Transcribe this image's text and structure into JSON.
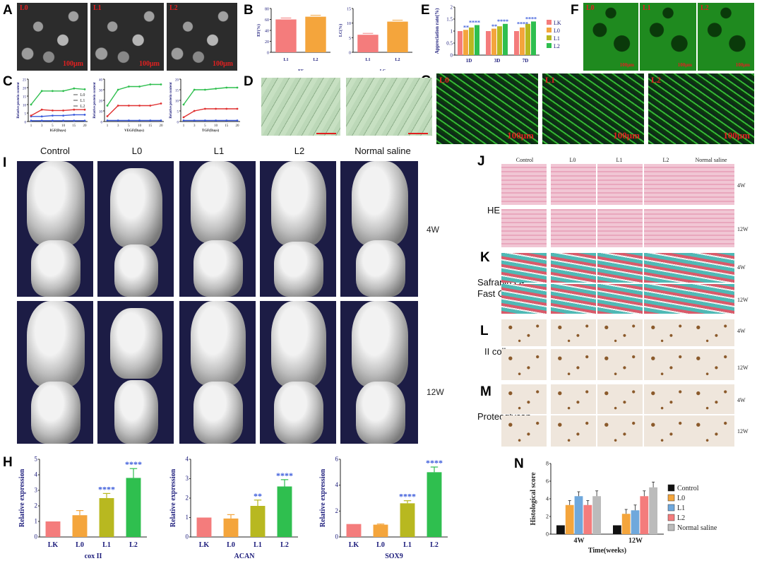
{
  "panels": {
    "A": {
      "label": "A",
      "tags": [
        "L0",
        "L1",
        "L2"
      ],
      "scale": [
        "100μm",
        "100μm",
        "100μm"
      ]
    },
    "B": {
      "label": "B"
    },
    "C": {
      "label": "C"
    },
    "D": {
      "label": "D"
    },
    "E": {
      "label": "E"
    },
    "F": {
      "label": "F",
      "tags": [
        "L0",
        "L1",
        "L2"
      ],
      "scale": [
        "100μm",
        "100μm",
        "100μm"
      ]
    },
    "G": {
      "label": "G",
      "tags": [
        "L0",
        "L1",
        "L2"
      ],
      "scale": [
        "100μm",
        "100μm",
        "100μm"
      ]
    },
    "I": {
      "label": "I",
      "columns": [
        "Control",
        "L0",
        "L1",
        "L2",
        "Normal saline"
      ],
      "rows": [
        "4W",
        "12W"
      ]
    },
    "J": {
      "label": "J",
      "columns": [
        "Control",
        "L0",
        "L1",
        "L2",
        "Normal saline"
      ],
      "rows": [
        "4W",
        "12W"
      ],
      "stain": "HE"
    },
    "K": {
      "label": "K",
      "rows": [
        "4W",
        "12W"
      ],
      "stain_line1": "Safranin O-",
      "stain_line2": "Fast Green"
    },
    "L": {
      "label": "L",
      "rows": [
        "4W",
        "12W"
      ],
      "stain": "II collagen"
    },
    "M": {
      "label": "M",
      "rows": [
        "4W",
        "12W"
      ],
      "stain": "Proteoglycan"
    },
    "H": {
      "label": "H"
    },
    "N": {
      "label": "N"
    }
  },
  "chart_data": [
    {
      "id": "B1",
      "type": "bar",
      "categories": [
        "L1",
        "L2"
      ],
      "values": [
        60,
        65
      ],
      "ylabel": "EF(%)",
      "xlabel": "EF",
      "ylim": [
        0,
        80
      ],
      "yticks": [
        0,
        20,
        40,
        60,
        80
      ],
      "colors": [
        "#f47c7c",
        "#f4a53c"
      ]
    },
    {
      "id": "B2",
      "type": "bar",
      "categories": [
        "L1",
        "L2"
      ],
      "values": [
        6,
        10.5
      ],
      "ylabel": "LC(%)",
      "xlabel": "LC",
      "ylim": [
        0,
        15
      ],
      "yticks": [
        0,
        5,
        10,
        15
      ],
      "colors": [
        "#f47c7c",
        "#f4a53c"
      ]
    },
    {
      "id": "C1",
      "type": "line",
      "x": [
        1,
        3,
        5,
        10,
        15,
        20
      ],
      "xlabel": "IGF(Days)",
      "ylabel": "Relative protein content",
      "ylim": [
        0,
        25
      ],
      "yticks": [
        0,
        5,
        10,
        15,
        20,
        25
      ],
      "series": [
        {
          "name": "L0",
          "values": [
            0.5,
            0.5,
            0.5,
            0.5,
            0.5,
            0.5
          ],
          "color": "#3b5bdb"
        },
        {
          "name": "L1",
          "values": [
            3,
            3,
            3.5,
            3.5,
            4,
            4
          ],
          "color": "#3b5bdb"
        },
        {
          "name": "L2",
          "values": [
            3.5,
            7,
            6.5,
            6.5,
            7,
            7
          ],
          "color": "#e03131"
        },
        {
          "name": "",
          "values": [
            10,
            18,
            18,
            18,
            19.5,
            19
          ],
          "color": "#2fbf4f"
        }
      ]
    },
    {
      "id": "C2",
      "type": "line",
      "x": [
        1,
        3,
        5,
        10,
        15,
        20
      ],
      "xlabel": "VEGF(Days)",
      "ylabel": "Relative protein content",
      "ylim": [
        0,
        40
      ],
      "yticks": [
        0,
        10,
        20,
        30,
        40
      ],
      "series": [
        {
          "name": "",
          "values": [
            1,
            1,
            1,
            1,
            1,
            1
          ],
          "color": "#3b5bdb"
        },
        {
          "name": "",
          "values": [
            5,
            15,
            15,
            15,
            15,
            17
          ],
          "color": "#e03131"
        },
        {
          "name": "",
          "values": [
            15,
            30,
            33,
            33,
            35,
            35
          ],
          "color": "#2fbf4f"
        }
      ]
    },
    {
      "id": "C3",
      "type": "line",
      "x": [
        1,
        3,
        5,
        10,
        15,
        20
      ],
      "xlabel": "TGF(Days)",
      "ylabel": "Relative protein content",
      "ylim": [
        0,
        20
      ],
      "yticks": [
        0,
        5,
        10,
        15,
        20
      ],
      "series": [
        {
          "name": "",
          "values": [
            0.5,
            0.5,
            0.5,
            0.5,
            0.5,
            0.5
          ],
          "color": "#3b5bdb"
        },
        {
          "name": "",
          "values": [
            2,
            5,
            6,
            6,
            6,
            6
          ],
          "color": "#e03131"
        },
        {
          "name": "",
          "values": [
            8,
            15,
            15,
            15.5,
            16,
            16
          ],
          "color": "#2fbf4f"
        }
      ]
    },
    {
      "id": "E",
      "type": "bar",
      "categories": [
        "1D",
        "3D",
        "7D"
      ],
      "ylabel": "Appreciation rate(%)",
      "ylim": [
        0,
        2.0
      ],
      "yticks": [
        0.0,
        0.5,
        1.0,
        1.5,
        2.0
      ],
      "series": [
        {
          "name": "LK",
          "values": [
            1.0,
            1.0,
            1.0
          ],
          "color": "#f47c7c"
        },
        {
          "name": "L0",
          "values": [
            1.05,
            1.1,
            1.15
          ],
          "color": "#f4a53c"
        },
        {
          "name": "L1",
          "values": [
            1.15,
            1.2,
            1.3
          ],
          "color": "#b8b820"
        },
        {
          "name": "L2",
          "values": [
            1.25,
            1.3,
            1.4
          ],
          "color": "#2fbf4f"
        }
      ],
      "annotations": [
        "**",
        "****",
        "**",
        "****",
        "****",
        "****"
      ]
    },
    {
      "id": "H1",
      "type": "bar",
      "categories": [
        "LK",
        "L0",
        "L1",
        "L2"
      ],
      "values": [
        1.0,
        1.4,
        2.5,
        3.8
      ],
      "errors": [
        0,
        0.3,
        0.3,
        0.6
      ],
      "ylabel": "Relative expression",
      "xlabel": "cox II",
      "ylim": [
        0,
        5
      ],
      "yticks": [
        0,
        1,
        2,
        3,
        4,
        5
      ],
      "colors": [
        "#f47c7c",
        "#f4a53c",
        "#b8b820",
        "#2fbf4f"
      ],
      "annotations": [
        "",
        "",
        "****",
        "****"
      ]
    },
    {
      "id": "H2",
      "type": "bar",
      "categories": [
        "LK",
        "L0",
        "L1",
        "L2"
      ],
      "values": [
        1.0,
        0.95,
        1.6,
        2.6
      ],
      "errors": [
        0,
        0.2,
        0.3,
        0.35
      ],
      "ylabel": "Relative expression",
      "xlabel": "ACAN",
      "ylim": [
        0,
        4
      ],
      "yticks": [
        0,
        1,
        2,
        3,
        4
      ],
      "colors": [
        "#f47c7c",
        "#f4a53c",
        "#b8b820",
        "#2fbf4f"
      ],
      "annotations": [
        "",
        "",
        "**",
        "****"
      ]
    },
    {
      "id": "H3",
      "type": "bar",
      "categories": [
        "LK",
        "L0",
        "L1",
        "L2"
      ],
      "values": [
        1.0,
        0.95,
        2.6,
        5.0
      ],
      "errors": [
        0,
        0.05,
        0.2,
        0.4
      ],
      "ylabel": "Relative expression",
      "xlabel": "SOX9",
      "ylim": [
        0,
        6
      ],
      "yticks": [
        0,
        2,
        4,
        6
      ],
      "colors": [
        "#f47c7c",
        "#f4a53c",
        "#b8b820",
        "#2fbf4f"
      ],
      "annotations": [
        "",
        "",
        "****",
        "****"
      ]
    },
    {
      "id": "N",
      "type": "bar",
      "categories": [
        "4W",
        "12W"
      ],
      "xlabel": "Time(weeks)",
      "ylabel": "Histological score",
      "ylim": [
        0,
        8
      ],
      "yticks": [
        0,
        2,
        4,
        6,
        8
      ],
      "series": [
        {
          "name": "Control",
          "values": [
            1.0,
            1.0
          ],
          "errors": [
            0,
            0
          ],
          "color": "#111111"
        },
        {
          "name": "L0",
          "values": [
            3.3,
            2.3
          ],
          "errors": [
            0.5,
            0.5
          ],
          "color": "#f4a53c"
        },
        {
          "name": "L1",
          "values": [
            4.3,
            2.7
          ],
          "errors": [
            0.5,
            0.6
          ],
          "color": "#6fa8dc"
        },
        {
          "name": "L2",
          "values": [
            3.3,
            4.3
          ],
          "errors": [
            0.5,
            0.6
          ],
          "color": "#f47c7c"
        },
        {
          "name": "Normal saline",
          "values": [
            4.3,
            5.3
          ],
          "errors": [
            0.6,
            0.6
          ],
          "color": "#bbbbbb"
        }
      ]
    }
  ]
}
